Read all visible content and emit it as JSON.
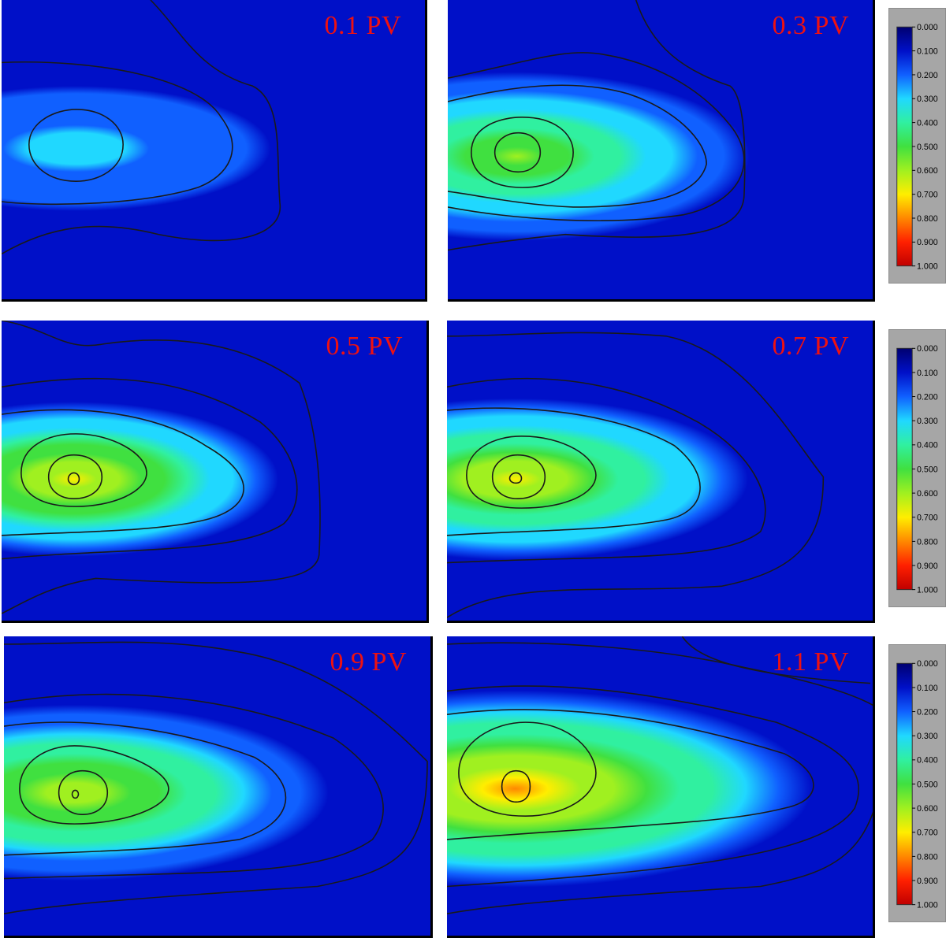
{
  "chart_data": {
    "type": "heatmap",
    "title": "",
    "xlabel": "",
    "ylabel": "",
    "panels": [
      {
        "label": "0.1 PV",
        "peak": 0.32
      },
      {
        "label": "0.3 PV",
        "peak": 0.58
      },
      {
        "label": "0.5 PV",
        "peak": 0.7
      },
      {
        "label": "0.7 PV",
        "peak": 0.68
      },
      {
        "label": "0.9 PV",
        "peak": 0.64
      },
      {
        "label": "1.1 PV",
        "peak": 0.76
      }
    ],
    "colorbar": {
      "ticks": [
        "0.000",
        "0.100",
        "0.200",
        "0.300",
        "0.400",
        "0.500",
        "0.600",
        "0.700",
        "0.800",
        "0.900",
        "1.000"
      ],
      "range": [
        0,
        1
      ],
      "colormap": [
        "#000070",
        "#0010c8",
        "#1060ff",
        "#20d8ff",
        "#30f0a0",
        "#40e040",
        "#a0f020",
        "#ffee00",
        "#ff8800",
        "#ff2000",
        "#c00000"
      ]
    }
  }
}
